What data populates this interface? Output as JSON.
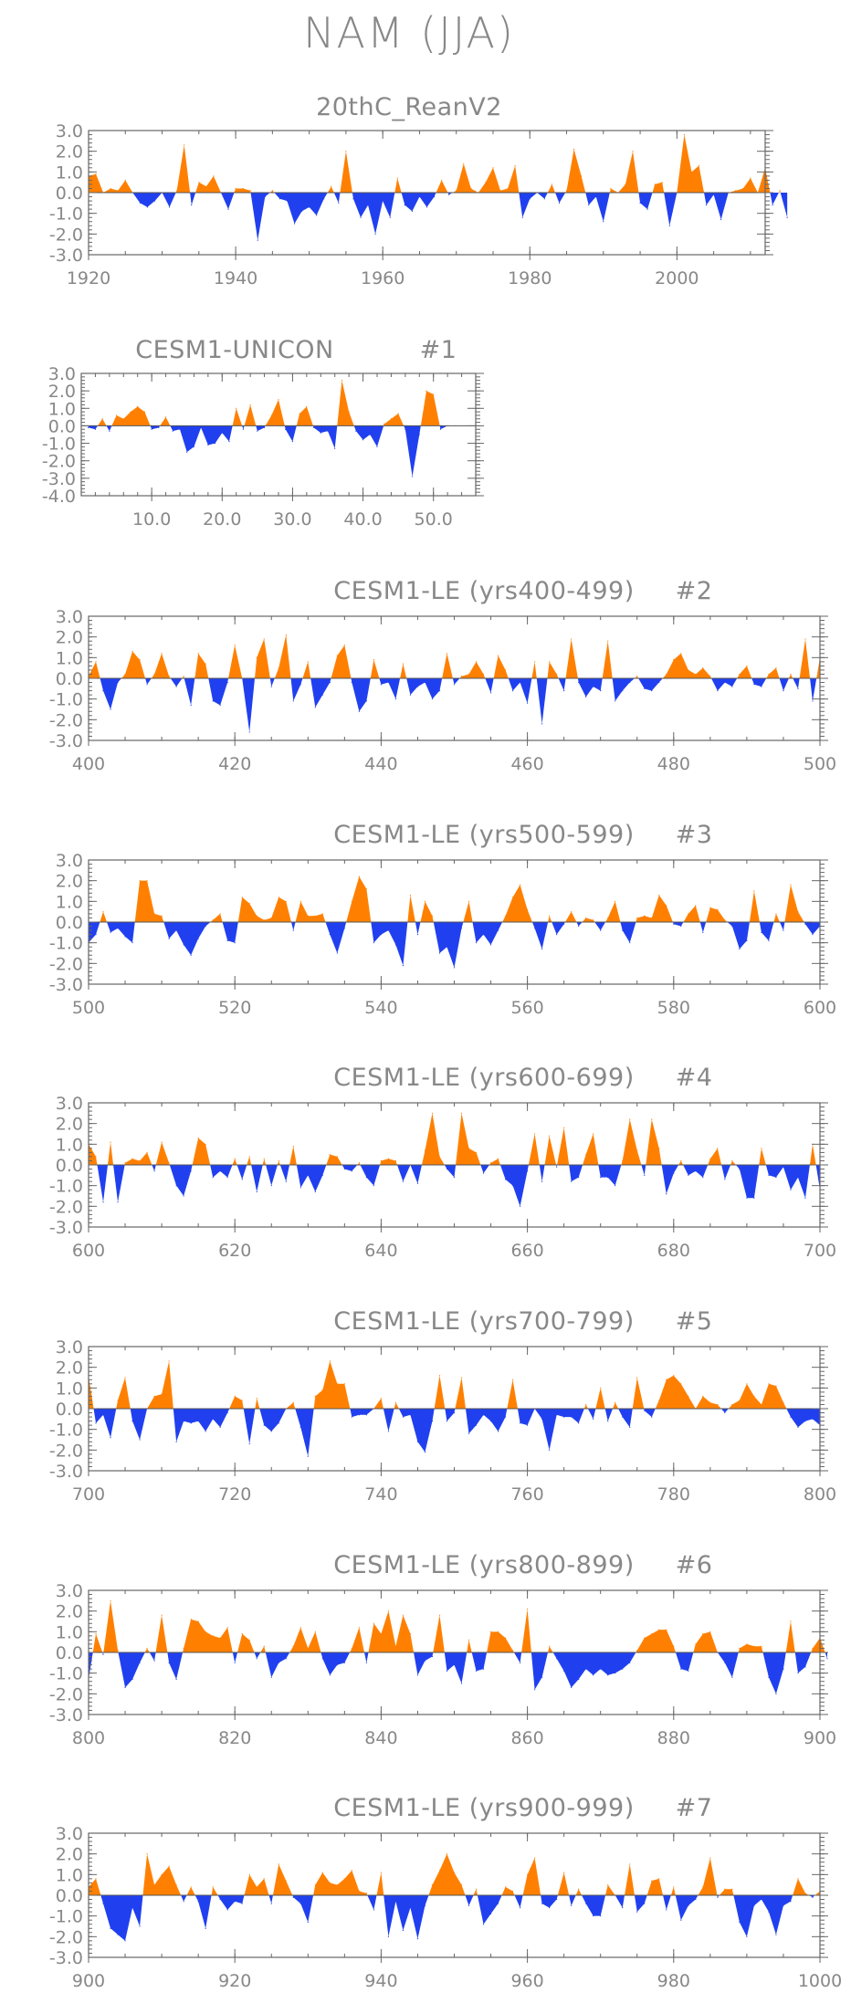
{
  "title": "NAM (JJA)",
  "colors": {
    "positive": "#ff8000",
    "negative": "#2040f0",
    "frame": "#666666",
    "label": "#888888"
  },
  "chart_data": [
    {
      "type": "area",
      "title": "20thC_ReanV2",
      "subtitle": "",
      "xlim": [
        1920,
        2012
      ],
      "xticks": [
        1920,
        1940,
        1960,
        1980,
        2000
      ],
      "ylim": [
        -3.0,
        3.0
      ],
      "yticks": [
        "3.0",
        "2.0",
        "1.0",
        "0.0",
        "-1.0",
        "-2.0",
        "-3.0"
      ],
      "x_start": 1920,
      "values": [
        0.8,
        0.9,
        0.0,
        0.2,
        0.1,
        0.6,
        0.0,
        -0.5,
        -0.7,
        -0.4,
        0.0,
        -0.7,
        0.1,
        2.3,
        -0.6,
        0.5,
        0.3,
        0.8,
        0.0,
        -0.8,
        0.2,
        0.2,
        0.1,
        -2.3,
        -0.2,
        0.1,
        -0.3,
        -0.4,
        -1.5,
        -0.9,
        -0.7,
        -1.1,
        -0.3,
        0.3,
        -0.5,
        2.0,
        -0.3,
        -1.2,
        -0.6,
        -2.0,
        -0.4,
        -1.2,
        0.7,
        -0.6,
        -0.9,
        -0.2,
        -0.7,
        -0.2,
        0.6,
        -0.1,
        0.1,
        1.4,
        0.2,
        0.0,
        0.5,
        1.2,
        0.1,
        0.2,
        1.3,
        -1.2,
        -0.3,
        0.0,
        -0.3,
        0.4,
        -0.5,
        0.1,
        2.1,
        0.8,
        -0.6,
        -0.2,
        -1.4,
        0.2,
        0.0,
        0.4,
        2.0,
        -0.5,
        -0.8,
        0.4,
        0.5,
        -1.6,
        0.0,
        2.8,
        1.0,
        1.3,
        -0.6,
        -0.1,
        -1.3,
        0.0,
        0.1,
        0.2,
        0.7,
        0.0,
        1.2,
        -0.6,
        0.1,
        -1.2
      ]
    },
    {
      "type": "area",
      "title": "CESM1-UNICON",
      "subtitle": "#1",
      "xlim": [
        0,
        56
      ],
      "xticks": [
        "10.0",
        "20.0",
        "30.0",
        "40.0",
        "50.0"
      ],
      "xtick_values": [
        10,
        20,
        30,
        40,
        50
      ],
      "ylim": [
        -4.0,
        3.0
      ],
      "yticks": [
        "3.0",
        "2.0",
        "1.0",
        "0.0",
        "-1.0",
        "-2.0",
        "-3.0",
        "-4.0"
      ],
      "x_start": 1,
      "values": [
        -0.1,
        -0.2,
        0.4,
        -0.3,
        0.6,
        0.4,
        0.8,
        1.1,
        0.8,
        -0.2,
        -0.1,
        0.5,
        -0.3,
        -0.2,
        -1.5,
        -1.2,
        -0.1,
        -1.1,
        -1.0,
        -0.4,
        -0.9,
        1.0,
        -0.2,
        1.2,
        -0.3,
        -0.1,
        0.6,
        1.5,
        -0.2,
        -0.9,
        0.7,
        1.1,
        -0.1,
        -0.4,
        -0.3,
        -1.3,
        2.6,
        0.8,
        -0.3,
        -0.8,
        -0.5,
        -1.2,
        0.1,
        0.4,
        0.7,
        -0.2,
        -2.9,
        -0.5,
        2.0,
        1.8,
        -0.2,
        0.0,
        0.0
      ]
    },
    {
      "type": "area",
      "title": "CESM1-LE (yrs400-499)",
      "subtitle": "#2",
      "xlim": [
        400,
        500
      ],
      "xticks": [
        400,
        420,
        440,
        460,
        480,
        500
      ],
      "ylim": [
        -3.0,
        3.0
      ],
      "yticks": [
        "3.0",
        "2.0",
        "1.0",
        "0.0",
        "-1.0",
        "-2.0",
        "-3.0"
      ],
      "x_start": 400,
      "values": [
        0.1,
        0.8,
        -0.6,
        -1.5,
        -0.2,
        0.2,
        1.3,
        0.9,
        -0.3,
        0.2,
        1.2,
        0.1,
        -0.4,
        0.1,
        -1.3,
        1.2,
        0.7,
        -1.1,
        -1.3,
        -0.2,
        1.6,
        0.0,
        -2.6,
        1.0,
        1.9,
        -0.4,
        0.5,
        2.1,
        -1.1,
        -0.3,
        0.8,
        -1.4,
        -0.8,
        -0.2,
        1.1,
        1.6,
        -0.2,
        -1.6,
        -1.1,
        0.9,
        -0.3,
        -0.2,
        -1.0,
        0.7,
        -0.8,
        -0.4,
        -0.2,
        -1.0,
        -0.6,
        1.2,
        -0.3,
        0.1,
        0.2,
        0.8,
        0.2,
        -0.7,
        1.1,
        0.4,
        -0.6,
        -0.2,
        -1.2,
        0.8,
        -2.2,
        0.8,
        0.2,
        -0.6,
        1.9,
        -0.2,
        -0.9,
        -0.4,
        -0.6,
        1.8,
        -1.1,
        -0.6,
        -0.2,
        0.1,
        -0.5,
        -0.6,
        -0.2,
        0.2,
        0.9,
        1.2,
        0.4,
        0.2,
        0.5,
        0.1,
        -0.6,
        -0.2,
        -0.4,
        0.2,
        0.6,
        -0.3,
        -0.4,
        0.2,
        0.5,
        -0.6,
        0.2,
        -0.5,
        1.9,
        -1.1,
        1.0
      ]
    },
    {
      "type": "area",
      "title": "CESM1-LE (yrs500-599)",
      "subtitle": "#3",
      "xlim": [
        500,
        600
      ],
      "xticks": [
        500,
        520,
        540,
        560,
        580,
        600
      ],
      "ylim": [
        -3.0,
        3.0
      ],
      "yticks": [
        "3.0",
        "2.0",
        "1.0",
        "0.0",
        "-1.0",
        "-2.0",
        "-3.0"
      ],
      "x_start": 500,
      "values": [
        -1.0,
        -0.6,
        0.5,
        -0.5,
        -0.3,
        -0.7,
        -1.0,
        2.0,
        2.0,
        0.4,
        0.3,
        -0.8,
        -0.4,
        -1.1,
        -1.6,
        -0.8,
        -0.2,
        0.1,
        0.4,
        -0.9,
        -1.0,
        1.2,
        0.9,
        0.3,
        0.1,
        0.2,
        1.2,
        1.0,
        -0.4,
        1.0,
        0.3,
        0.3,
        0.4,
        -0.6,
        -1.5,
        -0.3,
        1.0,
        2.2,
        1.6,
        -1.0,
        -0.6,
        -0.4,
        -1.1,
        -2.1,
        1.3,
        -0.6,
        1.0,
        0.3,
        -1.5,
        -1.2,
        -2.2,
        -0.3,
        1.0,
        -1.0,
        -0.6,
        -1.1,
        -0.4,
        0.3,
        1.2,
        1.8,
        0.6,
        -0.3,
        -1.3,
        0.3,
        -0.6,
        -0.1,
        0.5,
        -0.2,
        0.2,
        0.1,
        -0.4,
        0.2,
        1.0,
        -0.4,
        -1.0,
        0.2,
        0.3,
        0.2,
        1.3,
        0.8,
        -0.1,
        -0.2,
        0.4,
        0.8,
        -0.5,
        0.7,
        0.6,
        0.1,
        -0.2,
        -1.3,
        -0.9,
        1.5,
        -0.5,
        -0.9,
        0.4,
        -0.4,
        1.8,
        0.5,
        -0.1,
        -0.6,
        -0.2
      ]
    },
    {
      "type": "area",
      "title": "CESM1-LE (yrs600-699)",
      "subtitle": "#4",
      "xlim": [
        600,
        700
      ],
      "xticks": [
        600,
        620,
        640,
        660,
        680,
        700
      ],
      "ylim": [
        -3.0,
        3.0
      ],
      "yticks": [
        "3.0",
        "2.0",
        "1.0",
        "0.0",
        "-1.0",
        "-2.0",
        "-3.0"
      ],
      "x_start": 600,
      "values": [
        1.0,
        0.4,
        -1.8,
        1.1,
        -1.8,
        0.1,
        0.3,
        0.2,
        0.6,
        -0.3,
        1.1,
        0.1,
        -1.0,
        -1.5,
        -0.3,
        1.3,
        1.0,
        -0.6,
        -0.3,
        -0.6,
        0.3,
        -0.7,
        0.4,
        -1.3,
        0.3,
        -1.0,
        0.2,
        -0.8,
        0.9,
        -1.1,
        -0.5,
        -1.3,
        -0.5,
        0.5,
        0.4,
        -0.2,
        -0.3,
        0.1,
        -0.6,
        -1.0,
        0.2,
        0.3,
        0.2,
        -0.8,
        0.0,
        -0.9,
        0.7,
        2.5,
        0.4,
        -0.2,
        -0.6,
        2.5,
        0.8,
        0.6,
        -0.4,
        0.1,
        0.3,
        -0.7,
        -1.0,
        -2.0,
        -0.3,
        1.5,
        -0.8,
        1.4,
        -0.1,
        1.8,
        -0.8,
        -0.6,
        0.5,
        1.5,
        -0.6,
        -0.6,
        -1.0,
        0.2,
        2.2,
        0.7,
        -0.5,
        2.2,
        0.8,
        -1.4,
        -0.4,
        0.2,
        -0.5,
        -0.3,
        -0.6,
        0.3,
        0.8,
        -0.7,
        0.2,
        -0.2,
        -1.6,
        -1.6,
        0.8,
        -0.5,
        -0.6,
        -0.1,
        -1.2,
        -0.6,
        -1.6,
        1.0,
        -1.2
      ]
    },
    {
      "type": "area",
      "title": "CESM1-LE (yrs700-799)",
      "subtitle": "#5",
      "xlim": [
        700,
        800
      ],
      "xticks": [
        700,
        720,
        740,
        760,
        780,
        800
      ],
      "ylim": [
        -3.0,
        3.0
      ],
      "yticks": [
        "3.0",
        "2.0",
        "1.0",
        "0.0",
        "-1.0",
        "-2.0",
        "-3.0"
      ],
      "x_start": 700,
      "values": [
        1.6,
        -0.7,
        -0.3,
        -1.4,
        0.4,
        1.5,
        -0.6,
        -1.5,
        0.0,
        0.6,
        0.7,
        2.3,
        -1.6,
        -0.6,
        -0.7,
        -0.6,
        -1.1,
        -0.5,
        -0.9,
        -0.2,
        0.6,
        0.4,
        -1.7,
        0.5,
        -0.8,
        -1.1,
        -0.7,
        0.0,
        0.3,
        -0.9,
        -2.3,
        0.6,
        0.9,
        2.3,
        1.2,
        1.2,
        -0.4,
        -0.3,
        -0.3,
        0.0,
        0.5,
        -1.1,
        0.3,
        -0.4,
        -0.3,
        -1.6,
        -2.1,
        -0.6,
        1.6,
        -0.6,
        -0.2,
        1.5,
        -1.2,
        -0.8,
        -0.3,
        -0.6,
        -1.1,
        -0.4,
        1.4,
        -0.7,
        -0.8,
        0.0,
        -0.5,
        -2.0,
        -0.3,
        -0.4,
        -0.4,
        -0.7,
        0.2,
        -0.5,
        1.0,
        -0.6,
        0.3,
        -0.4,
        -0.9,
        1.5,
        -0.1,
        -0.4,
        0.4,
        1.4,
        1.6,
        1.2,
        0.6,
        0.0,
        0.6,
        0.3,
        0.2,
        -0.2,
        0.2,
        0.4,
        1.2,
        0.6,
        0.2,
        1.2,
        1.1,
        0.3,
        -0.4,
        -0.9,
        -0.6,
        -0.5,
        -0.8
      ]
    },
    {
      "type": "area",
      "title": "CESM1-LE (yrs800-899)",
      "subtitle": "#6",
      "xlim": [
        800,
        900
      ],
      "xticks": [
        800,
        820,
        840,
        860,
        880,
        900
      ],
      "ylim": [
        -3.0,
        3.0
      ],
      "yticks": [
        "3.0",
        "2.0",
        "1.0",
        "0.0",
        "-1.0",
        "-2.0",
        "-3.0"
      ],
      "x_start": 800,
      "values": [
        -1.3,
        0.9,
        -0.1,
        2.5,
        0.1,
        -1.7,
        -1.3,
        -0.5,
        0.2,
        -0.4,
        1.8,
        -0.5,
        -1.3,
        0.2,
        1.6,
        1.5,
        1.0,
        0.8,
        0.7,
        1.2,
        -0.5,
        0.9,
        0.6,
        -0.3,
        0.3,
        -1.2,
        -0.5,
        -0.3,
        0.3,
        1.2,
        0.2,
        1.0,
        -0.3,
        -1.1,
        -0.6,
        -0.5,
        0.2,
        1.2,
        -0.5,
        1.4,
        0.9,
        2.0,
        0.3,
        1.8,
        0.9,
        -1.1,
        -0.4,
        -0.2,
        1.8,
        -0.9,
        -0.6,
        -1.5,
        0.6,
        -0.9,
        -0.8,
        1.0,
        1.0,
        0.7,
        0.1,
        -0.5,
        2.1,
        -1.8,
        -1.2,
        0.3,
        -0.3,
        -0.9,
        -1.7,
        -1.3,
        -0.8,
        -1.1,
        -0.8,
        -1.1,
        -1.0,
        -0.8,
        -0.5,
        0.1,
        0.7,
        0.9,
        1.1,
        1.1,
        0.3,
        -0.8,
        -0.9,
        0.4,
        0.9,
        1.0,
        0.0,
        -0.5,
        -1.2,
        0.2,
        0.4,
        0.3,
        0.3,
        -1.2,
        -2.0,
        -0.8,
        1.5,
        -1.0,
        -0.7,
        0.2,
        0.7,
        -0.3
      ]
    },
    {
      "type": "area",
      "title": "CESM1-LE (yrs900-999)",
      "subtitle": "#7",
      "xlim": [
        900,
        1000
      ],
      "xticks": [
        900,
        920,
        940,
        960,
        980,
        1000
      ],
      "ylim": [
        -3.0,
        3.0
      ],
      "yticks": [
        "3.0",
        "2.0",
        "1.0",
        "0.0",
        "-1.0",
        "-2.0",
        "-3.0"
      ],
      "x_start": 900,
      "values": [
        0.4,
        0.8,
        -0.4,
        -1.6,
        -1.9,
        -2.2,
        -0.6,
        -1.5,
        2.0,
        0.5,
        1.0,
        1.4,
        0.5,
        -0.3,
        0.4,
        -0.3,
        -1.6,
        0.4,
        -0.2,
        -0.7,
        -0.3,
        -0.4,
        1.0,
        0.4,
        0.8,
        -0.4,
        1.5,
        0.7,
        -0.1,
        -0.4,
        -1.3,
        0.5,
        1.1,
        0.6,
        0.5,
        0.8,
        1.2,
        0.2,
        0.1,
        -0.7,
        1.1,
        -2.0,
        -0.3,
        -1.7,
        -0.6,
        -2.1,
        -0.5,
        0.5,
        1.2,
        2.0,
        1.1,
        0.5,
        -0.5,
        0.3,
        -1.4,
        -0.9,
        -0.4,
        0.4,
        0.2,
        -0.6,
        1.0,
        1.8,
        -0.4,
        -0.6,
        -0.2,
        1.1,
        -0.5,
        0.3,
        -0.4,
        -1.0,
        -1.0,
        0.5,
        0.0,
        -0.6,
        1.5,
        -0.8,
        -0.4,
        0.7,
        0.8,
        -0.7,
        0.4,
        -1.2,
        -0.5,
        -0.2,
        0.4,
        1.8,
        -0.1,
        0.3,
        0.3,
        -1.3,
        -2.0,
        -0.5,
        -0.2,
        -0.8,
        -1.9,
        -0.5,
        -0.3,
        0.8,
        0.1,
        -0.1,
        0.2
      ]
    }
  ]
}
